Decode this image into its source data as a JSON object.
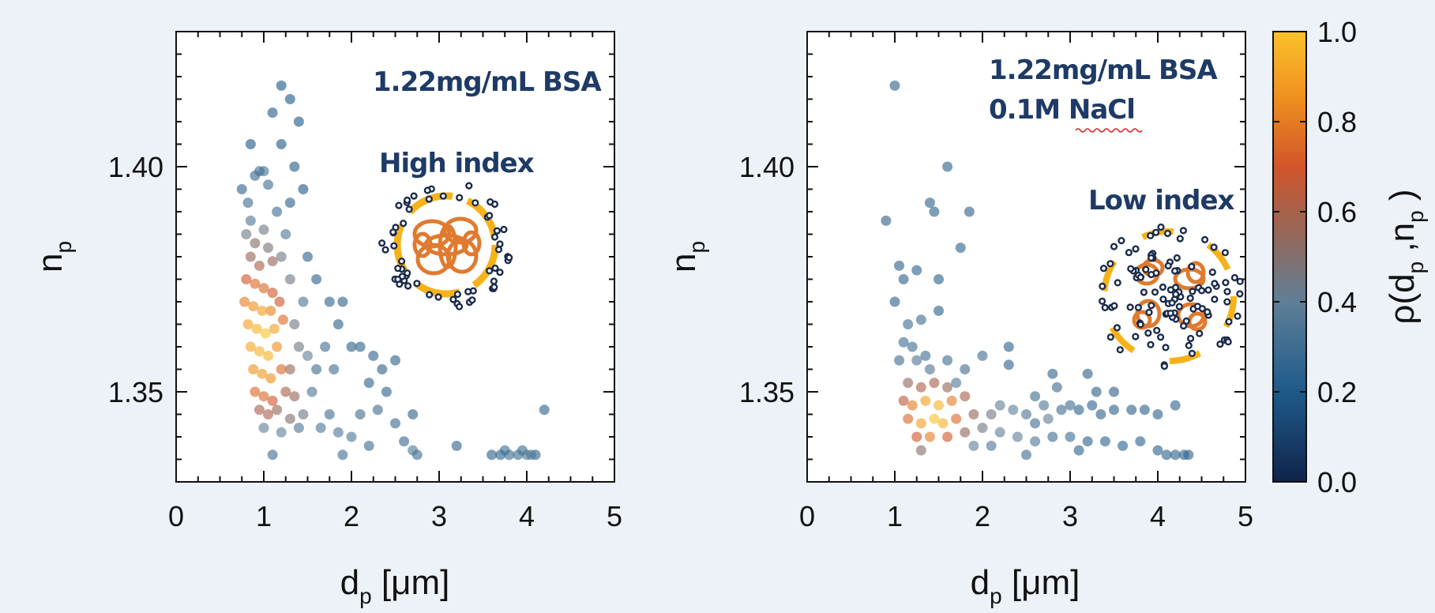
{
  "colors": {
    "background": "#edf2f9",
    "annotation": "#1e3a66",
    "halo": "#f7b21a",
    "protein": "#e07a2e",
    "ion": "#1a2b4c"
  },
  "colorbar": {
    "label": "ρ(d_p ,n_p )",
    "ticks": [
      "0.0",
      "0.2",
      "0.4",
      "0.6",
      "0.8",
      "1.0"
    ],
    "range": [
      0,
      1
    ],
    "colormap": "blue-grey-orange-yellow"
  },
  "chart_data": [
    {
      "type": "scatter",
      "xlabel": "d_p [μm]",
      "ylabel": "n_p",
      "xlim": [
        0,
        5
      ],
      "ylim": [
        1.33,
        1.43
      ],
      "xticks": [
        "0",
        "1",
        "2",
        "3",
        "4",
        "5"
      ],
      "yticks": [
        "1.35",
        "1.40"
      ],
      "annotations": [
        "1.22mg/mL BSA",
        "High index"
      ],
      "inset": "particle-high-index",
      "points": [
        [
          0.75,
          1.395,
          0.25
        ],
        [
          0.82,
          1.392,
          0.3
        ],
        [
          0.9,
          1.398,
          0.28
        ],
        [
          0.95,
          1.399,
          0.3
        ],
        [
          1.0,
          1.399,
          0.32
        ],
        [
          0.85,
          1.388,
          0.35
        ],
        [
          0.8,
          1.385,
          0.45
        ],
        [
          0.9,
          1.383,
          0.5
        ],
        [
          1.0,
          1.386,
          0.45
        ],
        [
          1.05,
          1.382,
          0.48
        ],
        [
          0.85,
          1.38,
          0.55
        ],
        [
          0.95,
          1.378,
          0.6
        ],
        [
          1.1,
          1.379,
          0.55
        ],
        [
          0.8,
          1.375,
          0.7
        ],
        [
          0.9,
          1.374,
          0.75
        ],
        [
          1.0,
          1.373,
          0.75
        ],
        [
          1.1,
          1.372,
          0.7
        ],
        [
          0.78,
          1.37,
          0.8
        ],
        [
          0.88,
          1.369,
          0.85
        ],
        [
          0.98,
          1.368,
          0.9
        ],
        [
          1.08,
          1.368,
          0.82
        ],
        [
          1.18,
          1.37,
          0.7
        ],
        [
          0.82,
          1.365,
          0.9
        ],
        [
          0.92,
          1.364,
          0.95
        ],
        [
          1.02,
          1.363,
          1.0
        ],
        [
          1.12,
          1.364,
          0.9
        ],
        [
          1.22,
          1.366,
          0.75
        ],
        [
          0.85,
          1.36,
          0.92
        ],
        [
          0.95,
          1.359,
          0.95
        ],
        [
          1.05,
          1.358,
          0.95
        ],
        [
          1.15,
          1.36,
          0.85
        ],
        [
          0.88,
          1.355,
          0.85
        ],
        [
          0.98,
          1.354,
          0.88
        ],
        [
          1.08,
          1.353,
          0.85
        ],
        [
          1.2,
          1.355,
          0.75
        ],
        [
          0.9,
          1.35,
          0.75
        ],
        [
          1.0,
          1.349,
          0.75
        ],
        [
          1.1,
          1.348,
          0.7
        ],
        [
          1.25,
          1.35,
          0.6
        ],
        [
          1.35,
          1.349,
          0.55
        ],
        [
          0.95,
          1.346,
          0.6
        ],
        [
          1.05,
          1.345,
          0.6
        ],
        [
          1.15,
          1.346,
          0.55
        ],
        [
          1.3,
          1.344,
          0.5
        ],
        [
          1.45,
          1.345,
          0.45
        ],
        [
          1.0,
          1.342,
          0.4
        ],
        [
          1.2,
          1.341,
          0.4
        ],
        [
          1.4,
          1.342,
          0.35
        ],
        [
          1.3,
          1.355,
          0.55
        ],
        [
          1.4,
          1.36,
          0.45
        ],
        [
          1.5,
          1.358,
          0.4
        ],
        [
          1.35,
          1.365,
          0.45
        ],
        [
          1.45,
          1.37,
          0.35
        ],
        [
          1.3,
          1.375,
          0.45
        ],
        [
          1.2,
          1.38,
          0.45
        ],
        [
          1.25,
          1.385,
          0.35
        ],
        [
          1.15,
          1.39,
          0.3
        ],
        [
          1.3,
          1.392,
          0.25
        ],
        [
          1.45,
          1.395,
          0.2
        ],
        [
          1.35,
          1.4,
          0.22
        ],
        [
          1.2,
          1.405,
          0.2
        ],
        [
          1.4,
          1.41,
          0.2
        ],
        [
          1.3,
          1.415,
          0.2
        ],
        [
          1.2,
          1.418,
          0.2
        ],
        [
          1.1,
          1.412,
          0.22
        ],
        [
          0.85,
          1.405,
          0.2
        ],
        [
          1.5,
          1.38,
          0.25
        ],
        [
          1.6,
          1.375,
          0.25
        ],
        [
          1.75,
          1.37,
          0.25
        ],
        [
          1.85,
          1.365,
          0.25
        ],
        [
          1.9,
          1.37,
          0.25
        ],
        [
          1.7,
          1.36,
          0.3
        ],
        [
          1.6,
          1.355,
          0.3
        ],
        [
          1.8,
          1.355,
          0.3
        ],
        [
          1.55,
          1.35,
          0.35
        ],
        [
          1.75,
          1.345,
          0.3
        ],
        [
          1.65,
          1.342,
          0.35
        ],
        [
          1.85,
          1.341,
          0.35
        ],
        [
          2.0,
          1.36,
          0.25
        ],
        [
          2.1,
          1.36,
          0.25
        ],
        [
          2.25,
          1.358,
          0.25
        ],
        [
          2.2,
          1.352,
          0.25
        ],
        [
          2.35,
          1.355,
          0.25
        ],
        [
          2.5,
          1.357,
          0.25
        ],
        [
          2.4,
          1.35,
          0.25
        ],
        [
          2.1,
          1.345,
          0.3
        ],
        [
          2.3,
          1.346,
          0.3
        ],
        [
          2.5,
          1.343,
          0.28
        ],
        [
          2.7,
          1.345,
          0.25
        ],
        [
          2.0,
          1.34,
          0.35
        ],
        [
          1.9,
          1.336,
          0.3
        ],
        [
          2.2,
          1.338,
          0.3
        ],
        [
          2.6,
          1.339,
          0.28
        ],
        [
          2.7,
          1.337,
          0.35
        ],
        [
          2.75,
          1.336,
          0.3
        ],
        [
          3.2,
          1.338,
          0.25
        ],
        [
          3.6,
          1.336,
          0.25
        ],
        [
          3.7,
          1.336,
          0.25
        ],
        [
          3.8,
          1.336,
          0.3
        ],
        [
          3.9,
          1.336,
          0.3
        ],
        [
          4.0,
          1.336,
          0.35
        ],
        [
          4.05,
          1.336,
          0.35
        ],
        [
          3.75,
          1.337,
          0.3
        ],
        [
          3.95,
          1.337,
          0.3
        ],
        [
          4.2,
          1.346,
          0.25
        ],
        [
          4.1,
          1.336,
          0.25
        ],
        [
          1.1,
          1.336,
          0.3
        ],
        [
          1.05,
          1.396,
          0.3
        ]
      ]
    },
    {
      "type": "scatter",
      "xlabel": "d_p [μm]",
      "ylabel": "n_p",
      "xlim": [
        0,
        5
      ],
      "ylim": [
        1.33,
        1.43
      ],
      "xticks": [
        "0",
        "1",
        "2",
        "3",
        "4",
        "5"
      ],
      "yticks": [
        "1.35",
        "1.40"
      ],
      "annotations": [
        "1.22mg/mL BSA",
        "0.1M NaCl",
        "Low index"
      ],
      "inset": "particle-low-index",
      "points": [
        [
          1.0,
          1.418,
          0.25
        ],
        [
          1.6,
          1.4,
          0.25
        ],
        [
          1.4,
          1.392,
          0.25
        ],
        [
          1.45,
          1.39,
          0.25
        ],
        [
          1.85,
          1.39,
          0.25
        ],
        [
          0.9,
          1.388,
          0.25
        ],
        [
          1.75,
          1.382,
          0.25
        ],
        [
          1.05,
          1.378,
          0.25
        ],
        [
          1.1,
          1.375,
          0.25
        ],
        [
          1.25,
          1.377,
          0.25
        ],
        [
          1.5,
          1.375,
          0.25
        ],
        [
          1.0,
          1.37,
          0.25
        ],
        [
          1.15,
          1.365,
          0.3
        ],
        [
          1.3,
          1.366,
          0.3
        ],
        [
          1.5,
          1.368,
          0.25
        ],
        [
          1.1,
          1.361,
          0.3
        ],
        [
          1.2,
          1.36,
          0.3
        ],
        [
          1.35,
          1.358,
          0.3
        ],
        [
          1.05,
          1.357,
          0.3
        ],
        [
          1.25,
          1.357,
          0.35
        ],
        [
          1.4,
          1.355,
          0.35
        ],
        [
          1.6,
          1.357,
          0.3
        ],
        [
          1.8,
          1.355,
          0.3
        ],
        [
          2.0,
          1.358,
          0.3
        ],
        [
          2.3,
          1.36,
          0.25
        ],
        [
          1.15,
          1.352,
          0.55
        ],
        [
          1.3,
          1.351,
          0.6
        ],
        [
          1.45,
          1.352,
          0.6
        ],
        [
          1.6,
          1.351,
          0.55
        ],
        [
          1.1,
          1.348,
          0.65
        ],
        [
          1.2,
          1.347,
          0.8
        ],
        [
          1.35,
          1.348,
          0.9
        ],
        [
          1.5,
          1.347,
          0.95
        ],
        [
          1.65,
          1.348,
          0.8
        ],
        [
          1.8,
          1.349,
          0.6
        ],
        [
          1.15,
          1.344,
          0.75
        ],
        [
          1.3,
          1.343,
          0.9
        ],
        [
          1.45,
          1.344,
          1.0
        ],
        [
          1.55,
          1.343,
          0.95
        ],
        [
          1.7,
          1.344,
          0.75
        ],
        [
          1.9,
          1.345,
          0.55
        ],
        [
          1.25,
          1.34,
          0.7
        ],
        [
          1.4,
          1.34,
          0.8
        ],
        [
          1.6,
          1.34,
          0.7
        ],
        [
          1.8,
          1.341,
          0.55
        ],
        [
          2.0,
          1.342,
          0.45
        ],
        [
          2.1,
          1.345,
          0.45
        ],
        [
          2.2,
          1.347,
          0.4
        ],
        [
          2.35,
          1.346,
          0.4
        ],
        [
          2.5,
          1.345,
          0.35
        ],
        [
          2.6,
          1.343,
          0.3
        ],
        [
          2.75,
          1.344,
          0.4
        ],
        [
          2.7,
          1.347,
          0.35
        ],
        [
          2.9,
          1.346,
          0.3
        ],
        [
          3.0,
          1.347,
          0.3
        ],
        [
          3.1,
          1.346,
          0.25
        ],
        [
          3.25,
          1.347,
          0.25
        ],
        [
          3.35,
          1.345,
          0.25
        ],
        [
          3.5,
          1.346,
          0.25
        ],
        [
          3.7,
          1.346,
          0.25
        ],
        [
          3.85,
          1.346,
          0.25
        ],
        [
          4.0,
          1.345,
          0.25
        ],
        [
          2.2,
          1.341,
          0.4
        ],
        [
          2.4,
          1.34,
          0.4
        ],
        [
          2.6,
          1.339,
          0.35
        ],
        [
          2.8,
          1.34,
          0.3
        ],
        [
          3.0,
          1.34,
          0.3
        ],
        [
          3.2,
          1.339,
          0.25
        ],
        [
          3.4,
          1.339,
          0.25
        ],
        [
          3.6,
          1.338,
          0.25
        ],
        [
          3.8,
          1.339,
          0.25
        ],
        [
          4.0,
          1.337,
          0.25
        ],
        [
          4.1,
          1.336,
          0.25
        ],
        [
          4.2,
          1.336,
          0.25
        ],
        [
          4.3,
          1.336,
          0.25
        ],
        [
          4.35,
          1.336,
          0.25
        ],
        [
          2.1,
          1.338,
          0.35
        ],
        [
          2.5,
          1.336,
          0.3
        ],
        [
          3.1,
          1.337,
          0.25
        ],
        [
          1.3,
          1.337,
          0.5
        ],
        [
          1.9,
          1.338,
          0.4
        ],
        [
          2.85,
          1.351,
          0.3
        ],
        [
          2.6,
          1.349,
          0.3
        ],
        [
          3.3,
          1.35,
          0.25
        ],
        [
          3.5,
          1.35,
          0.25
        ],
        [
          4.2,
          1.347,
          0.25
        ],
        [
          2.3,
          1.356,
          0.25
        ],
        [
          2.8,
          1.354,
          0.25
        ],
        [
          3.2,
          1.354,
          0.25
        ],
        [
          1.7,
          1.352,
          0.35
        ]
      ]
    }
  ]
}
